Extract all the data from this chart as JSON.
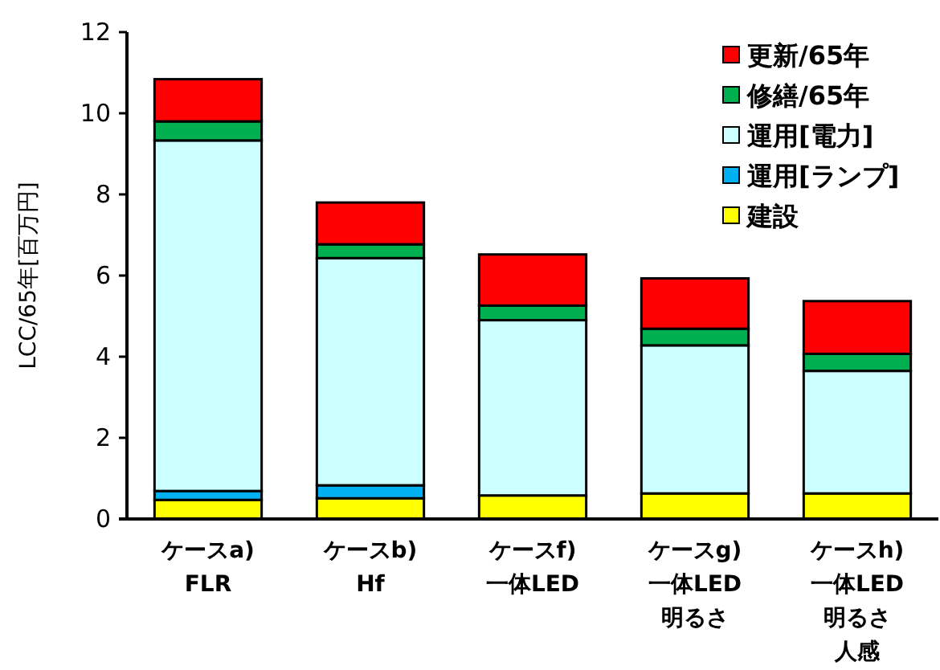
{
  "chart_data": {
    "type": "bar",
    "stacked": true,
    "ylabel": "LCC/65年[百万円]",
    "categories": [
      "ケースa)\nFLR",
      "ケースb)\nHf",
      "ケースf)\n一体LED",
      "ケースg)\n一体LED\n明るさ",
      "ケースh)\n一体LED\n明るさ人感"
    ],
    "series": [
      {
        "name": "建設",
        "color": "#ffff00",
        "values": [
          0.47,
          0.51,
          0.58,
          0.63,
          0.63
        ]
      },
      {
        "name": "運用[ランプ]",
        "color": "#00b0f0",
        "values": [
          0.22,
          0.32,
          0,
          0,
          0
        ]
      },
      {
        "name": "運用[電力]",
        "color": "#ccffff",
        "values": [
          8.64,
          5.6,
          4.32,
          3.65,
          3.02
        ]
      },
      {
        "name": "修繕/65年",
        "color": "#00b050",
        "values": [
          0.47,
          0.34,
          0.36,
          0.41,
          0.42
        ]
      },
      {
        "name": "更新/65年",
        "color": "#ff0000",
        "values": [
          1.04,
          1.03,
          1.26,
          1.24,
          1.3
        ]
      }
    ],
    "ylim": [
      0,
      12
    ],
    "yticks": [
      0,
      2,
      4,
      6,
      8,
      10,
      12
    ],
    "legend": "top right"
  }
}
